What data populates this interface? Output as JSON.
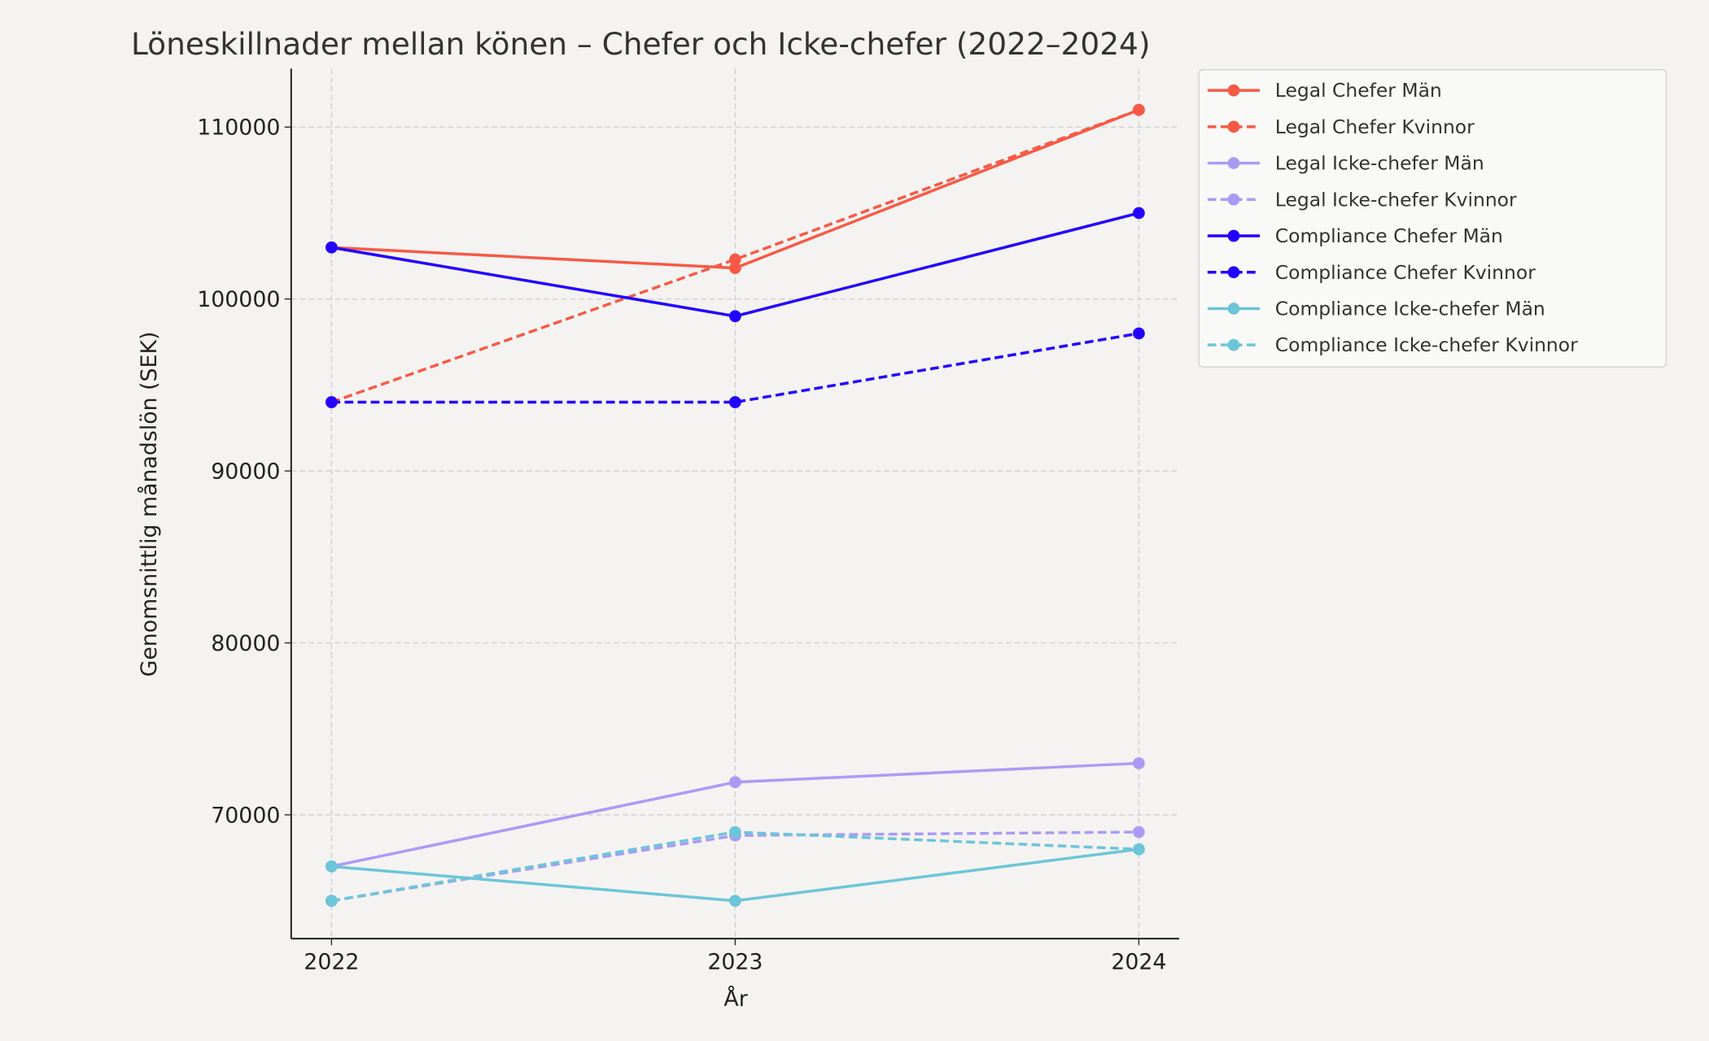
{
  "chart_data": {
    "type": "line",
    "title": "Löneskillnader mellan könen – Chefer och Icke-chefer (2022–2024)",
    "xlabel": "År",
    "ylabel": "Genomsnittlig månadslön (SEK)",
    "x": [
      2022,
      2023,
      2024
    ],
    "x_ticks": [
      "2022",
      "2023",
      "2024"
    ],
    "y_ticks": [
      70000,
      80000,
      90000,
      100000,
      110000
    ],
    "y_tick_labels": [
      "70000",
      "80000",
      "90000",
      "100000",
      "110000"
    ],
    "xlim": [
      2021.9,
      2024.1
    ],
    "ylim": [
      62800,
      113400
    ],
    "grid": true,
    "legend_position": "outside-top-right",
    "series": [
      {
        "name": "Legal Chefer Män",
        "values": [
          103000,
          101800,
          111000
        ],
        "color": "#f65a46",
        "dashed": false
      },
      {
        "name": "Legal Chefer Kvinnor",
        "values": [
          94000,
          102300,
          111000
        ],
        "color": "#f65a46",
        "dashed": true
      },
      {
        "name": "Legal Icke-chefer Män",
        "values": [
          67000,
          71900,
          73000
        ],
        "color": "#a99bf5",
        "dashed": false
      },
      {
        "name": "Legal Icke-chefer Kvinnor",
        "values": [
          65000,
          68800,
          69000
        ],
        "color": "#a99bf5",
        "dashed": true
      },
      {
        "name": "Compliance Chefer Män",
        "values": [
          103000,
          99000,
          105000
        ],
        "color": "#2200ff",
        "dashed": false
      },
      {
        "name": "Compliance Chefer Kvinnor",
        "values": [
          94000,
          94000,
          98000
        ],
        "color": "#2200ff",
        "dashed": true
      },
      {
        "name": "Compliance Icke-chefer Män",
        "values": [
          67000,
          65000,
          68000
        ],
        "color": "#6cc5d8",
        "dashed": false
      },
      {
        "name": "Compliance Icke-chefer Kvinnor",
        "values": [
          65000,
          69000,
          68000
        ],
        "color": "#6cc5d8",
        "dashed": true
      }
    ]
  }
}
